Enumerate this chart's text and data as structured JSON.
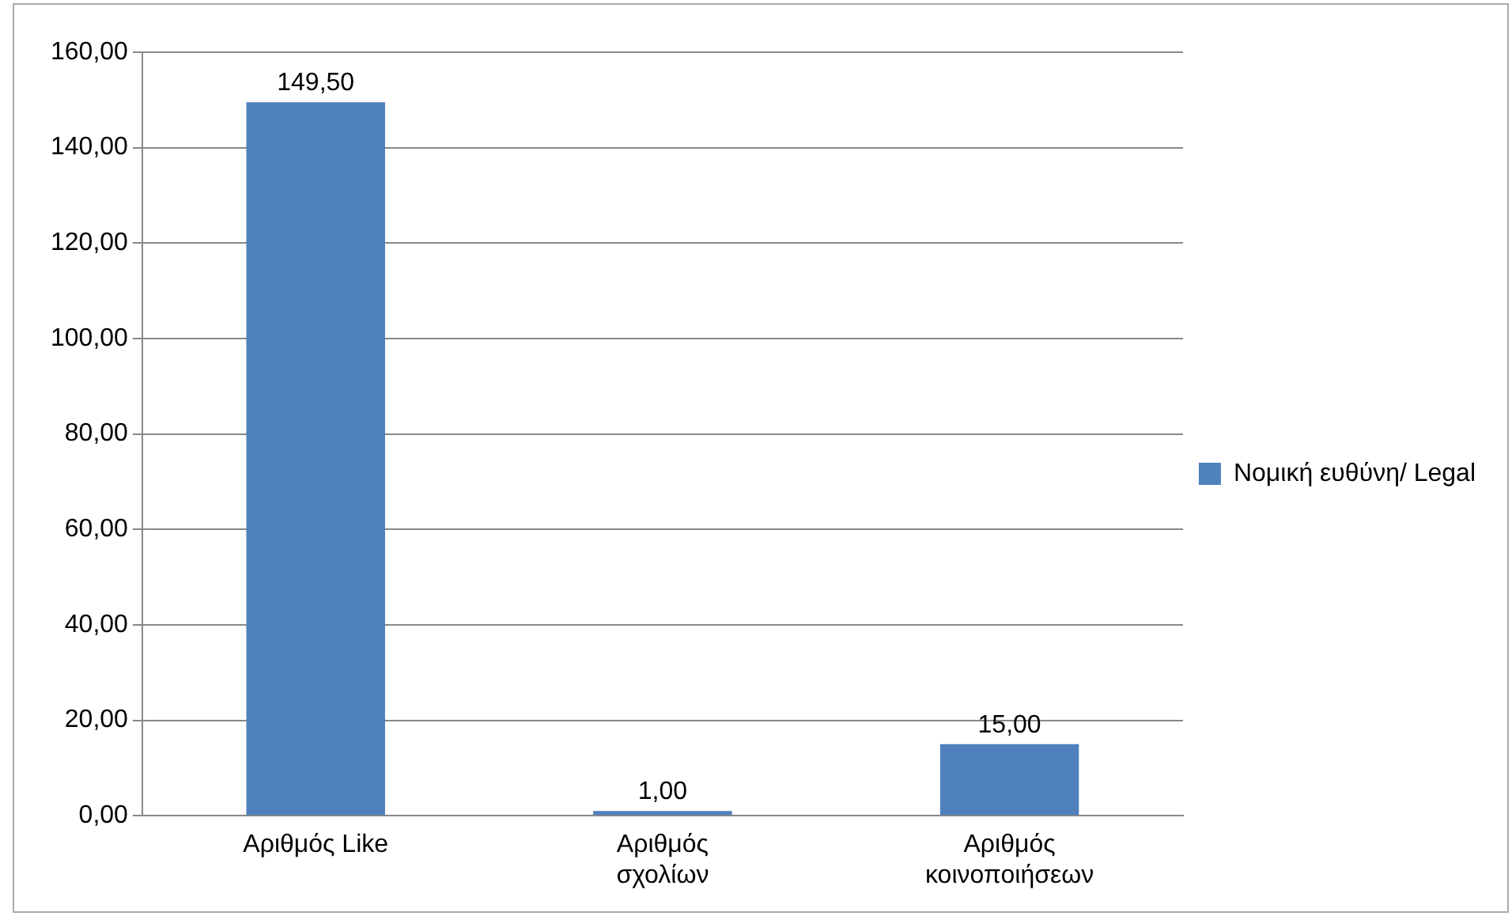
{
  "chart_data": {
    "type": "bar",
    "categories": [
      "Αριθμός Like",
      "Αριθμός σχολίων",
      "Αριθμός κοινοποιήσεων"
    ],
    "series": [
      {
        "name": "Νομική ευθύνη/ Legal",
        "color": "#4f81bd",
        "values": [
          149.5,
          1,
          15
        ],
        "value_labels": [
          "149,50",
          "1,00",
          "15,00"
        ]
      }
    ],
    "ylim": [
      0,
      160
    ],
    "yticks": [
      {
        "value": 0,
        "label": "0,00"
      },
      {
        "value": 20,
        "label": "20,00"
      },
      {
        "value": 40,
        "label": "40,00"
      },
      {
        "value": 60,
        "label": "60,00"
      },
      {
        "value": 80,
        "label": "80,00"
      },
      {
        "value": 100,
        "label": "100,00"
      },
      {
        "value": 120,
        "label": "120,00"
      },
      {
        "value": 140,
        "label": "140,00"
      },
      {
        "value": 160,
        "label": "160,00"
      }
    ],
    "grid": "y",
    "legend": "right"
  }
}
